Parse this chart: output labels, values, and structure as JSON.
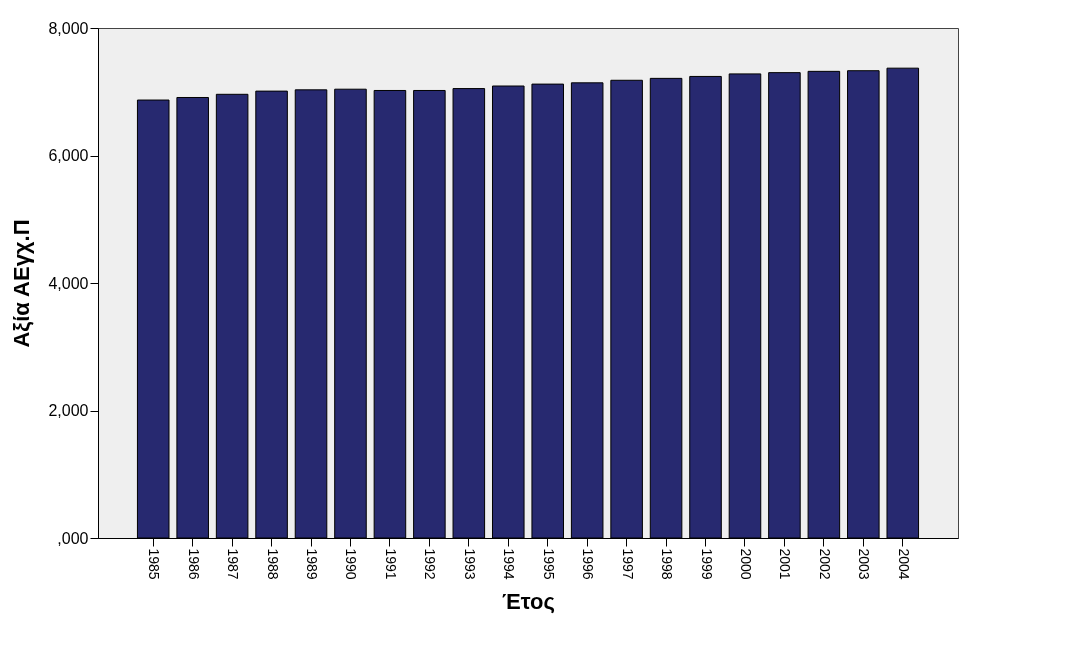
{
  "chart_data": {
    "type": "bar",
    "xlabel": "Έτος",
    "ylabel": "Αξία ΑΕγχ.Π",
    "categories": [
      "1985",
      "1986",
      "1987",
      "1988",
      "1989",
      "1990",
      "1991",
      "1992",
      "1993",
      "1994",
      "1995",
      "1996",
      "1997",
      "1998",
      "1999",
      "2000",
      "2001",
      "2002",
      "2003",
      "2004"
    ],
    "values": [
      6870,
      6910,
      6960,
      7010,
      7030,
      7040,
      7020,
      7020,
      7050,
      7090,
      7120,
      7140,
      7180,
      7210,
      7240,
      7280,
      7300,
      7320,
      7330,
      7370
    ],
    "color": "#272970",
    "ylim": [
      0,
      8000
    ],
    "yticks": [
      {
        "value": 0,
        "label": ",000"
      },
      {
        "value": 2000,
        "label": "2,000"
      },
      {
        "value": 4000,
        "label": "4,000"
      },
      {
        "value": 6000,
        "label": "6,000"
      },
      {
        "value": 8000,
        "label": "8,000"
      }
    ],
    "grid": false
  }
}
